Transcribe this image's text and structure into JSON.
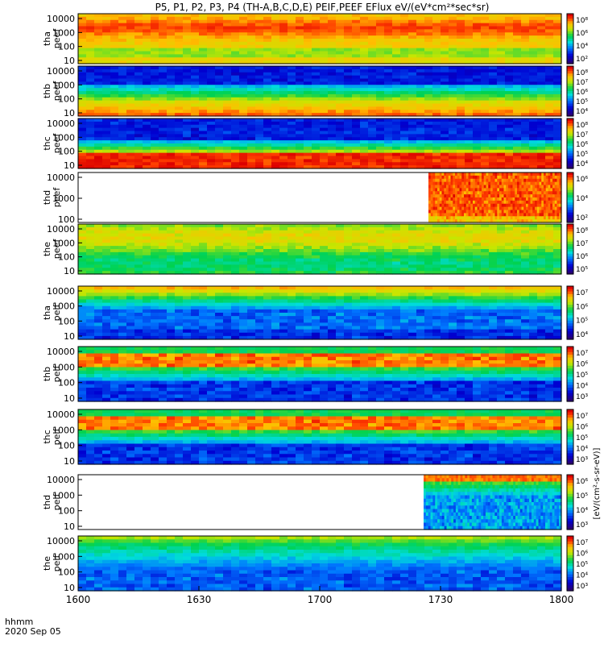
{
  "chart_data": {
    "type": "heatmap",
    "title": "P5, P1, P2, P3, P4 (TH-A,B,C,D,E) PEIF,PEEF EFlux eV/(eV*cm²*sec*sr)",
    "x_tick_labels": [
      "1600",
      "1630",
      "1700",
      "1730",
      "1800"
    ],
    "x_range": [
      "16:00",
      "18:00"
    ],
    "time_row_label": "hhmm",
    "date_label": "2020 Sep 05",
    "y_scale": "log",
    "colorbar_unit_label": "[eV/(cm²-s-sr-eV)]",
    "panels": [
      {
        "label_line1": "tha",
        "label_line2": "peef",
        "y_tick_labels": [
          "10000",
          "1000",
          "100",
          "10"
        ],
        "y_range": [
          10,
          30000
        ],
        "colorbar_tick_labels": [
          "10⁸",
          "10⁶",
          "10⁴",
          "10²"
        ],
        "data_start_fraction": 0.0,
        "pattern": "hot-center-band"
      },
      {
        "label_line1": "thb",
        "label_line2": "peef",
        "y_tick_labels": [
          "10000",
          "1000",
          "100",
          "10"
        ],
        "y_range": [
          10,
          30000
        ],
        "colorbar_tick_labels": [
          "10⁸",
          "10⁷",
          "10⁶",
          "10⁵",
          "10⁴"
        ],
        "data_start_fraction": 0.0,
        "pattern": "cold-top-warm-bottom"
      },
      {
        "label_line1": "thc",
        "label_line2": "peef",
        "y_tick_labels": [
          "10000",
          "1000",
          "100",
          "10"
        ],
        "y_range": [
          10,
          30000
        ],
        "colorbar_tick_labels": [
          "10⁸",
          "10⁷",
          "10⁶",
          "10⁵",
          "10⁴"
        ],
        "data_start_fraction": 0.0,
        "pattern": "cold-top-hot-bottom"
      },
      {
        "label_line1": "thd",
        "label_line2": "peef",
        "y_tick_labels": [
          "10000",
          "1000",
          "100"
        ],
        "y_range": [
          30,
          30000
        ],
        "colorbar_tick_labels": [
          "10⁶",
          "10⁴",
          "10²"
        ],
        "data_start_fraction": 0.725,
        "pattern": "hot-red"
      },
      {
        "label_line1": "the",
        "label_line2": "peef",
        "y_tick_labels": [
          "10000",
          "1000",
          "100",
          "10"
        ],
        "y_range": [
          10,
          30000
        ],
        "colorbar_tick_labels": [
          "10⁸",
          "10⁷",
          "10⁶",
          "10⁵"
        ],
        "data_start_fraction": 0.0,
        "pattern": "green-yellow"
      },
      {
        "label_line1": "tha",
        "label_line2": "peif",
        "y_tick_labels": [
          "10000",
          "1000",
          "100",
          "10"
        ],
        "y_range": [
          5,
          30000
        ],
        "colorbar_tick_labels": [
          "10⁷",
          "10⁶",
          "10⁵",
          "10⁴"
        ],
        "data_start_fraction": 0.0,
        "pattern": "ion-warm-top"
      },
      {
        "label_line1": "thb",
        "label_line2": "peif",
        "y_tick_labels": [
          "10000",
          "1000",
          "100",
          "10"
        ],
        "y_range": [
          5,
          30000
        ],
        "colorbar_tick_labels": [
          "10⁷",
          "10⁶",
          "10⁵",
          "10⁴",
          "10³"
        ],
        "data_start_fraction": 0.0,
        "pattern": "ion-hot-band"
      },
      {
        "label_line1": "thc",
        "label_line2": "peif",
        "y_tick_labels": [
          "10000",
          "1000",
          "100",
          "10"
        ],
        "y_range": [
          5,
          30000
        ],
        "colorbar_tick_labels": [
          "10⁷",
          "10⁶",
          "10⁵",
          "10⁴",
          "10³"
        ],
        "data_start_fraction": 0.0,
        "pattern": "ion-hot-band"
      },
      {
        "label_line1": "thd",
        "label_line2": "peif",
        "y_tick_labels": [
          "10000",
          "1000",
          "100",
          "10"
        ],
        "y_range": [
          5,
          30000
        ],
        "colorbar_tick_labels": [
          "10⁶",
          "10⁵",
          "10⁴",
          "10³"
        ],
        "data_start_fraction": 0.715,
        "pattern": "ion-late"
      },
      {
        "label_line1": "the",
        "label_line2": "peif",
        "y_tick_labels": [
          "10000",
          "1000",
          "100",
          "10"
        ],
        "y_range": [
          5,
          30000
        ],
        "colorbar_tick_labels": [
          "10⁷",
          "10⁶",
          "10⁵",
          "10⁴",
          "10³"
        ],
        "data_start_fraction": 0.0,
        "pattern": "ion-green"
      }
    ]
  }
}
